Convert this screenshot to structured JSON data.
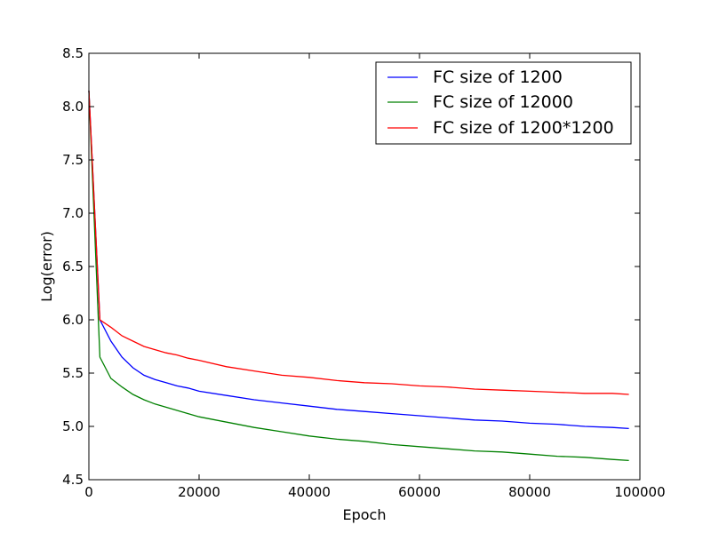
{
  "chart_data": {
    "type": "line",
    "xlabel": "Epoch",
    "ylabel": "Log(error)",
    "xlim": [
      0,
      100000
    ],
    "ylim": [
      4.5,
      8.5
    ],
    "xticks": [
      0,
      20000,
      40000,
      60000,
      80000,
      100000
    ],
    "xtick_labels": [
      "0",
      "20000",
      "40000",
      "60000",
      "80000",
      "100000"
    ],
    "yticks": [
      4.5,
      5.0,
      5.5,
      6.0,
      6.5,
      7.0,
      7.5,
      8.0,
      8.5
    ],
    "ytick_labels": [
      "4.5",
      "5.0",
      "5.5",
      "6.0",
      "6.5",
      "7.0",
      "7.5",
      "8.0",
      "8.5"
    ],
    "grid": false,
    "legend_position": "top-right",
    "series": [
      {
        "name": "FC size of 1200",
        "color": "#0000ff",
        "x": [
          0,
          2000,
          4000,
          6000,
          8000,
          10000,
          12000,
          14000,
          16000,
          18000,
          20000,
          25000,
          30000,
          35000,
          40000,
          45000,
          50000,
          55000,
          60000,
          65000,
          70000,
          75000,
          80000,
          85000,
          90000,
          95000,
          98000
        ],
        "y": [
          8.15,
          6.0,
          5.8,
          5.65,
          5.55,
          5.48,
          5.44,
          5.41,
          5.38,
          5.36,
          5.33,
          5.29,
          5.25,
          5.22,
          5.19,
          5.16,
          5.14,
          5.12,
          5.1,
          5.08,
          5.06,
          5.05,
          5.03,
          5.02,
          5.0,
          4.99,
          4.98
        ]
      },
      {
        "name": "FC size of 12000",
        "color": "#008000",
        "x": [
          0,
          2000,
          4000,
          6000,
          8000,
          10000,
          12000,
          14000,
          16000,
          18000,
          20000,
          25000,
          30000,
          35000,
          40000,
          45000,
          50000,
          55000,
          60000,
          65000,
          70000,
          75000,
          80000,
          85000,
          90000,
          95000,
          98000
        ],
        "y": [
          8.15,
          5.65,
          5.45,
          5.37,
          5.3,
          5.25,
          5.21,
          5.18,
          5.15,
          5.12,
          5.09,
          5.04,
          4.99,
          4.95,
          4.91,
          4.88,
          4.86,
          4.83,
          4.81,
          4.79,
          4.77,
          4.76,
          4.74,
          4.72,
          4.71,
          4.69,
          4.68
        ]
      },
      {
        "name": "FC size of 1200*1200",
        "color": "#ff0000",
        "x": [
          0,
          2000,
          4000,
          6000,
          8000,
          10000,
          12000,
          14000,
          16000,
          18000,
          20000,
          25000,
          30000,
          35000,
          40000,
          45000,
          50000,
          55000,
          60000,
          65000,
          70000,
          75000,
          80000,
          85000,
          90000,
          95000,
          98000
        ],
        "y": [
          8.15,
          6.0,
          5.93,
          5.85,
          5.8,
          5.75,
          5.72,
          5.69,
          5.67,
          5.64,
          5.62,
          5.56,
          5.52,
          5.48,
          5.46,
          5.43,
          5.41,
          5.4,
          5.38,
          5.37,
          5.35,
          5.34,
          5.33,
          5.32,
          5.31,
          5.31,
          5.3
        ]
      }
    ]
  }
}
